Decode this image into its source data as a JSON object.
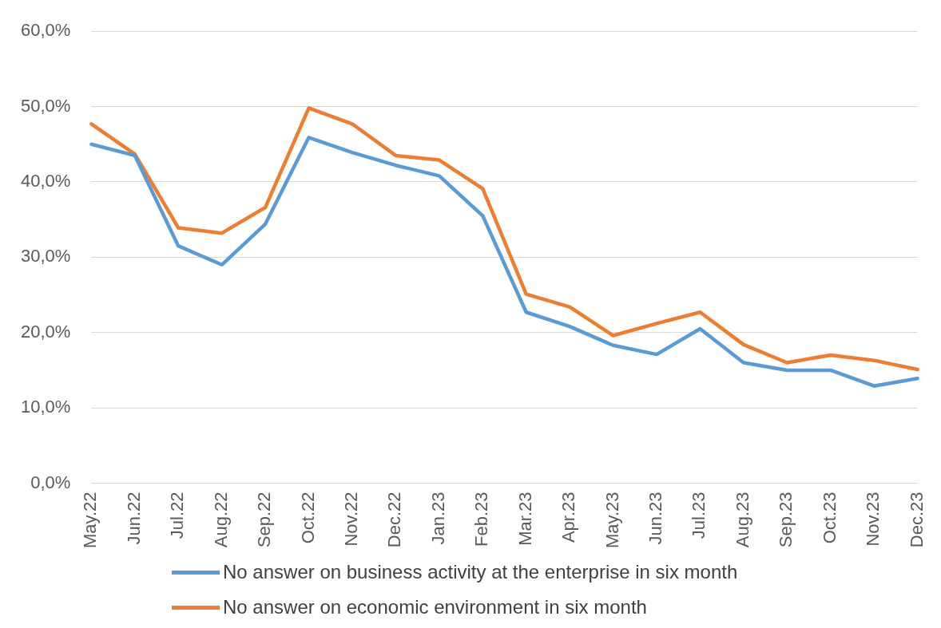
{
  "chart_data": {
    "type": "line",
    "categories": [
      "May.22",
      "Jun.22",
      "Jul.22",
      "Aug.22",
      "Sep.22",
      "Oct.22",
      "Nov.22",
      "Dec.22",
      "Jan.23",
      "Feb.23",
      "Mar.23",
      "Apr.23",
      "May.23",
      "Jun.23",
      "Jul.23",
      "Aug.23",
      "Sep.23",
      "Oct.23",
      "Nov.23",
      "Dec.23"
    ],
    "series": [
      {
        "name": "No answer on business activity at the enterprise in six month",
        "color": "#5b9bd5",
        "values": [
          45.0,
          43.5,
          31.5,
          29.0,
          34.4,
          45.9,
          43.9,
          42.2,
          40.8,
          35.5,
          22.7,
          20.8,
          18.3,
          17.1,
          20.5,
          16.0,
          15.0,
          15.0,
          12.9,
          13.9
        ]
      },
      {
        "name": "No answer on economic environment in six month",
        "color": "#ed7d31",
        "values": [
          47.7,
          43.7,
          33.9,
          33.2,
          36.6,
          49.8,
          47.7,
          43.5,
          42.9,
          39.1,
          25.1,
          23.4,
          19.6,
          21.2,
          22.7,
          18.4,
          16.0,
          17.0,
          16.3,
          15.1
        ]
      }
    ],
    "ylim": [
      0,
      60
    ],
    "yticks": [
      {
        "value": 0,
        "label": "0,0%"
      },
      {
        "value": 10,
        "label": "10,0%"
      },
      {
        "value": 20,
        "label": "20,0%"
      },
      {
        "value": 30,
        "label": "30,0%"
      },
      {
        "value": 40,
        "label": "40,0%"
      },
      {
        "value": 50,
        "label": "50,0%"
      },
      {
        "value": 60,
        "label": "60,0%"
      }
    ],
    "grid": "y",
    "legend": "bottom",
    "marker": "none",
    "line_style": "solid"
  }
}
